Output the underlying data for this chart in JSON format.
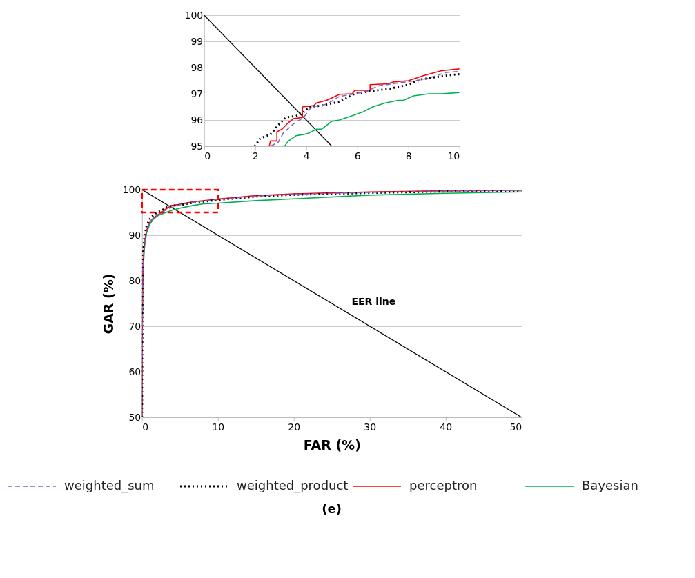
{
  "chart_data": [
    {
      "type": "line",
      "xlim": [
        0,
        10
      ],
      "ylim": [
        95,
        100
      ],
      "xticks": [
        0,
        2,
        4,
        6,
        8,
        10
      ],
      "yticks": [
        95,
        96,
        97,
        98,
        99,
        100
      ],
      "grid": "y",
      "marker": "none",
      "series": [
        {
          "color": "#7f5fbf",
          "line_style": "dashed",
          "x": [
            2.6,
            2.9,
            3.1,
            3.5,
            3.9,
            4.2,
            4.8,
            5.3,
            5.9,
            6.4,
            6.8,
            7.5,
            8.3,
            8.8,
            9.5,
            10
          ],
          "values": [
            95,
            95.15,
            95.5,
            95.85,
            96.1,
            96.5,
            96.6,
            96.9,
            97.0,
            97.1,
            97.3,
            97.4,
            97.5,
            97.6,
            97.82,
            97.85
          ]
        },
        {
          "color": "#000000",
          "line_style": "dotted",
          "x": [
            1.98,
            2.2,
            2.6,
            2.9,
            3.2,
            3.6,
            3.9,
            4.1,
            4.6,
            5.3,
            5.9,
            6.5,
            7.3,
            8.0,
            8.5,
            9.5,
            10
          ],
          "values": [
            95,
            95.3,
            95.45,
            95.8,
            96.1,
            96.15,
            96.3,
            96.5,
            96.55,
            96.7,
            97.0,
            97.1,
            97.2,
            97.35,
            97.55,
            97.7,
            97.75
          ]
        },
        {
          "color": "#ff0000",
          "line_style": "solid",
          "x": [
            2.55,
            2.6,
            2.85,
            2.85,
            3.05,
            3.3,
            3.5,
            3.85,
            3.85,
            4.3,
            4.4,
            4.8,
            5.3,
            5.8,
            5.9,
            6.5,
            6.5,
            7.2,
            7.4,
            8.0,
            8.6,
            9.3,
            10
          ],
          "values": [
            95,
            95.2,
            95.2,
            95.55,
            95.65,
            95.9,
            96.05,
            96.1,
            96.5,
            96.55,
            96.65,
            96.75,
            96.98,
            97.0,
            97.13,
            97.13,
            97.35,
            97.38,
            97.45,
            97.5,
            97.7,
            97.88,
            97.95
          ]
        },
        {
          "color": "#00b050",
          "line_style": "solid",
          "x": [
            3.15,
            3.3,
            3.6,
            3.9,
            4.1,
            4.4,
            4.6,
            5.0,
            5.3,
            5.9,
            6.2,
            6.6,
            7.1,
            7.6,
            7.8,
            8.2,
            8.8,
            9.3,
            10
          ],
          "values": [
            95,
            95.2,
            95.4,
            95.45,
            95.5,
            95.65,
            95.65,
            95.95,
            96.0,
            96.2,
            96.3,
            96.5,
            96.65,
            96.75,
            96.75,
            96.92,
            97.0,
            97.0,
            97.05
          ]
        },
        {
          "color": "#000000",
          "line_style": "solid",
          "x": [
            0,
            5
          ],
          "values": [
            100,
            95
          ]
        }
      ]
    },
    {
      "type": "line",
      "xlabel": "FAR (%)",
      "ylabel": "GAR (%)",
      "xlim": [
        0,
        50
      ],
      "ylim": [
        50,
        100
      ],
      "xticks": [
        0,
        10,
        20,
        30,
        40,
        50
      ],
      "yticks": [
        50,
        60,
        70,
        80,
        90,
        100
      ],
      "grid": "y",
      "marker": "none",
      "legend": "bottom",
      "annotations": [
        {
          "text": "EER line",
          "x": 29.6,
          "y": 70.4
        },
        "(e)"
      ],
      "series": [
        {
          "name": "weighted_sum",
          "color": "#7f5fbf",
          "line_style": "dashed",
          "x": [
            0,
            0.05,
            0.1,
            0.3,
            0.6,
            1,
            1.5,
            2,
            2.6,
            3.1,
            3.9,
            4.8,
            5.9,
            7.5,
            10,
            15,
            20,
            30,
            40,
            50
          ],
          "values": [
            50,
            72,
            82,
            88,
            91,
            92.8,
            93.8,
            94.4,
            95,
            95.5,
            96.1,
            96.6,
            97.0,
            97.4,
            97.85,
            98.6,
            99.0,
            99.4,
            99.7,
            99.85
          ]
        },
        {
          "name": "weighted_product",
          "color": "#000000",
          "line_style": "dotted",
          "x": [
            0,
            0.05,
            0.1,
            0.3,
            0.6,
            1,
            1.5,
            1.98,
            2.6,
            3.2,
            4.1,
            5.3,
            6.5,
            8.0,
            10,
            15,
            20,
            30,
            40,
            50
          ],
          "values": [
            50,
            76,
            85,
            89.5,
            92,
            93.5,
            94.4,
            95,
            95.45,
            96.1,
            96.5,
            96.7,
            97.1,
            97.35,
            97.75,
            98.5,
            98.9,
            99.3,
            99.6,
            99.8
          ]
        },
        {
          "name": "perceptron",
          "color": "#ff0000",
          "line_style": "solid",
          "x": [
            0,
            0.05,
            0.1,
            0.3,
            0.6,
            1,
            1.5,
            2,
            2.55,
            3.05,
            3.85,
            4.8,
            5.9,
            7.4,
            10,
            15,
            20,
            30,
            40,
            50
          ],
          "values": [
            50,
            72,
            82,
            88,
            91,
            92.8,
            93.8,
            94.4,
            95,
            95.65,
            96.5,
            96.75,
            97.13,
            97.45,
            97.95,
            98.7,
            99.1,
            99.5,
            99.75,
            99.9
          ]
        },
        {
          "name": "Bayesian",
          "color": "#00b050",
          "line_style": "solid",
          "x": [
            0,
            0.05,
            0.1,
            0.3,
            0.6,
            1,
            1.5,
            2,
            2.5,
            3.15,
            3.9,
            5.0,
            6.6,
            8.2,
            10,
            15,
            20,
            30,
            40,
            50
          ],
          "values": [
            50,
            70,
            80,
            87,
            90.5,
            92.3,
            93.5,
            94.2,
            94.6,
            95,
            95.45,
            95.95,
            96.5,
            96.92,
            97.05,
            97.6,
            98.0,
            98.8,
            99.2,
            99.5
          ]
        },
        {
          "color": "#000000",
          "line_style": "solid",
          "x": [
            0,
            50
          ],
          "values": [
            100,
            50
          ]
        }
      ]
    }
  ]
}
